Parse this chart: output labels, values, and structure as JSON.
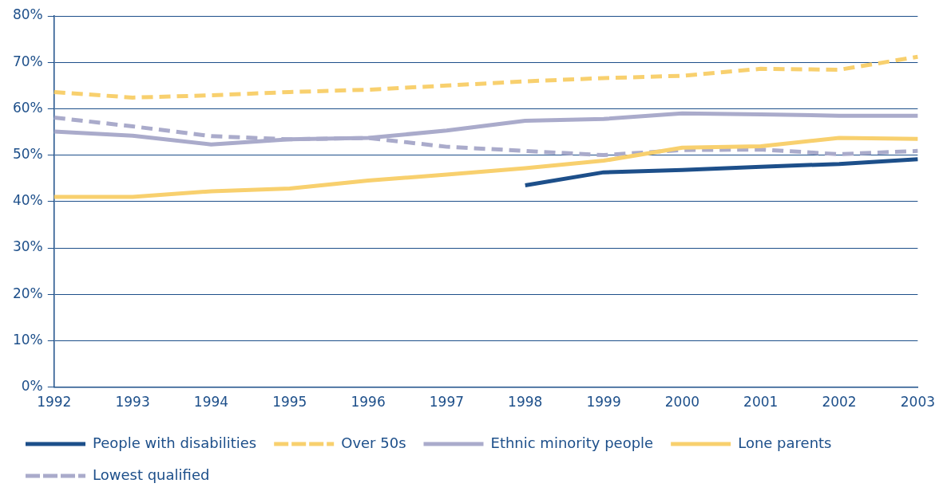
{
  "chart_data": {
    "type": "line",
    "categories": [
      "1992",
      "1993",
      "1994",
      "1995",
      "1996",
      "1997",
      "1998",
      "1999",
      "2000",
      "2001",
      "2002",
      "2003"
    ],
    "ylim": [
      0,
      80
    ],
    "yticks": [
      {
        "value": 0,
        "label": "0%"
      },
      {
        "value": 10,
        "label": "10%"
      },
      {
        "value": 20,
        "label": "20%"
      },
      {
        "value": 30,
        "label": "30%"
      },
      {
        "value": 40,
        "label": "40%"
      },
      {
        "value": 50,
        "label": "50%"
      },
      {
        "value": 60,
        "label": "60%"
      },
      {
        "value": 70,
        "label": "70%"
      },
      {
        "value": 80,
        "label": "80%"
      }
    ],
    "grid": "y",
    "legend": "bottom",
    "marker": "none",
    "series": [
      {
        "name": "People with disabilities",
        "color": "#1d4f8a",
        "line_style": "solid",
        "values": [
          null,
          null,
          null,
          null,
          null,
          null,
          43.5,
          46.3,
          46.8,
          47.5,
          48.1,
          49.1
        ]
      },
      {
        "name": "Over 50s",
        "color": "#f8d06e",
        "line_style": "dashed",
        "values": [
          63.6,
          62.4,
          62.9,
          63.6,
          64.1,
          65,
          65.9,
          66.6,
          67.1,
          68.6,
          68.4,
          71.2
        ]
      },
      {
        "name": "Ethnic minority people",
        "color": "#aaabcb",
        "line_style": "solid",
        "values": [
          55.1,
          54.2,
          52.3,
          53.4,
          53.7,
          55.3,
          57.4,
          57.8,
          59,
          58.8,
          58.5,
          58.5
        ]
      },
      {
        "name": "Lone parents",
        "color": "#f8d06e",
        "line_style": "solid",
        "values": [
          41,
          41,
          42.2,
          42.8,
          44.5,
          45.8,
          47.2,
          48.8,
          51.6,
          51.9,
          53.7,
          53.5
        ]
      },
      {
        "name": "Lowest qualified",
        "color": "#aaabcb",
        "line_style": "dashed",
        "values": [
          58.1,
          56.2,
          54.1,
          53.4,
          53.7,
          51.8,
          50.9,
          50,
          51.1,
          51.2,
          50.2,
          50.9
        ]
      }
    ]
  }
}
